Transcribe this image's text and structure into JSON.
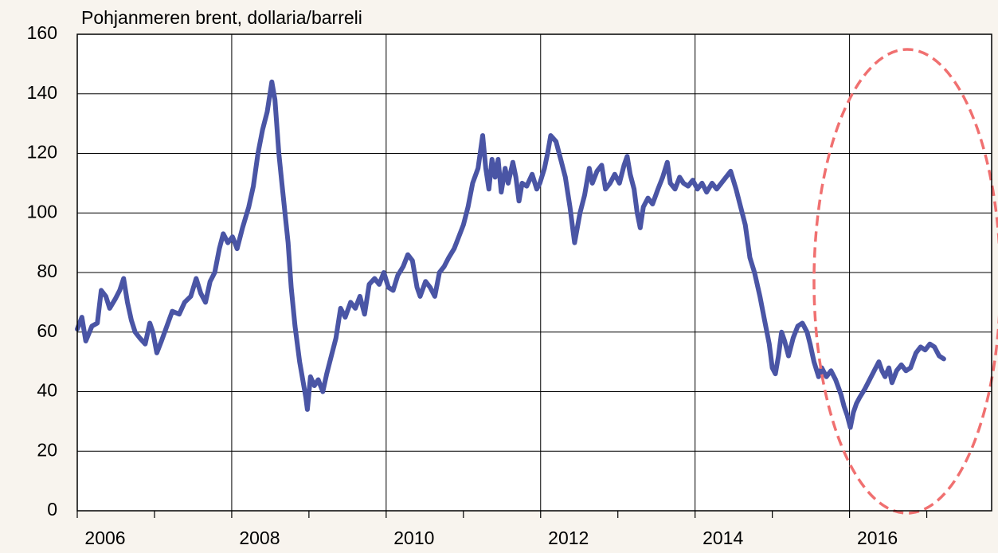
{
  "chart_data": {
    "type": "line",
    "title": "Pohjanmeren brent, dollaria/barreli",
    "color": "#4a55a5",
    "x": [
      2006.0,
      2006.06,
      2006.11,
      2006.19,
      2006.26,
      2006.31,
      2006.37,
      2006.42,
      2006.49,
      2006.55,
      2006.6,
      2006.65,
      2006.7,
      2006.75,
      2006.81,
      2006.88,
      2006.94,
      2006.98,
      2007.03,
      2007.09,
      2007.16,
      2007.23,
      2007.32,
      2007.39,
      2007.47,
      2007.54,
      2007.6,
      2007.66,
      2007.72,
      2007.78,
      2007.84,
      2007.89,
      2007.95,
      2008.01,
      2008.07,
      2008.14,
      2008.22,
      2008.28,
      2008.34,
      2008.4,
      2008.46,
      2008.52,
      2008.56,
      2008.61,
      2008.65,
      2008.69,
      2008.73,
      2008.77,
      2008.82,
      2008.88,
      2008.92,
      2008.96,
      2008.98,
      2009.02,
      2009.07,
      2009.12,
      2009.18,
      2009.23,
      2009.29,
      2009.35,
      2009.41,
      2009.47,
      2009.54,
      2009.6,
      2009.66,
      2009.72,
      2009.78,
      2009.85,
      2009.91,
      2009.97,
      2010.03,
      2010.09,
      2010.15,
      2010.22,
      2010.28,
      2010.34,
      2010.4,
      2010.44,
      2010.51,
      2010.57,
      2010.63,
      2010.69,
      2010.75,
      2010.81,
      2010.88,
      2010.94,
      2011.0,
      2011.06,
      2011.12,
      2011.19,
      2011.25,
      2011.29,
      2011.33,
      2011.37,
      2011.41,
      2011.45,
      2011.49,
      2011.54,
      2011.58,
      2011.64,
      2011.68,
      2011.72,
      2011.76,
      2011.82,
      2011.89,
      2011.95,
      2011.99,
      2012.05,
      2012.09,
      2012.13,
      2012.2,
      2012.26,
      2012.32,
      2012.38,
      2012.44,
      2012.51,
      2012.57,
      2012.63,
      2012.67,
      2012.73,
      2012.79,
      2012.84,
      2012.9,
      2012.96,
      2013.02,
      2013.08,
      2013.12,
      2013.16,
      2013.21,
      2013.25,
      2013.29,
      2013.33,
      2013.39,
      2013.45,
      2013.52,
      2013.58,
      2013.64,
      2013.68,
      2013.74,
      2013.8,
      2013.85,
      2013.91,
      2013.97,
      2014.03,
      2014.09,
      2014.15,
      2014.22,
      2014.28,
      2014.34,
      2014.4,
      2014.46,
      2014.53,
      2014.59,
      2014.65,
      2014.71,
      2014.77,
      2014.84,
      2014.9,
      2014.96,
      2015.0,
      2015.04,
      2015.08,
      2015.12,
      2015.16,
      2015.21,
      2015.27,
      2015.33,
      2015.39,
      2015.45,
      2015.49,
      2015.54,
      2015.6,
      2015.64,
      2015.7,
      2015.76,
      2015.82,
      2015.89,
      2015.93,
      2015.97,
      2016.01,
      2016.05,
      2016.09,
      2016.13,
      2016.2,
      2016.26,
      2016.32,
      2016.38,
      2016.42,
      2016.46,
      2016.51,
      2016.55,
      2016.61,
      2016.67,
      2016.73,
      2016.79,
      2016.86,
      2016.92,
      2016.98,
      2017.04,
      2017.1,
      2017.16,
      2017.22
    ],
    "values": [
      61,
      65,
      57,
      62,
      63,
      74,
      72,
      68,
      71,
      74,
      78,
      70,
      64,
      60,
      58,
      56,
      63,
      60,
      53,
      57,
      62,
      67,
      66,
      70,
      72,
      78,
      73,
      70,
      77,
      80,
      88,
      93,
      90,
      92,
      88,
      95,
      102,
      109,
      120,
      128,
      134,
      144,
      138,
      120,
      110,
      100,
      90,
      75,
      62,
      50,
      44,
      38,
      34,
      45,
      42,
      44,
      40,
      46,
      52,
      58,
      68,
      65,
      70,
      68,
      72,
      66,
      76,
      78,
      76,
      80,
      75,
      74,
      79,
      82,
      86,
      84,
      75,
      72,
      77,
      75,
      72,
      80,
      82,
      85,
      88,
      92,
      96,
      102,
      110,
      115,
      126,
      115,
      108,
      118,
      112,
      118,
      107,
      115,
      110,
      117,
      112,
      104,
      110,
      109,
      113,
      108,
      110,
      115,
      120,
      126,
      124,
      118,
      112,
      102,
      90,
      100,
      106,
      115,
      110,
      114,
      116,
      108,
      110,
      113,
      110,
      116,
      119,
      113,
      108,
      100,
      95,
      102,
      105,
      103,
      108,
      112,
      117,
      110,
      108,
      112,
      110,
      109,
      111,
      108,
      110,
      107,
      110,
      108,
      110,
      112,
      114,
      108,
      102,
      96,
      85,
      80,
      72,
      64,
      56,
      48,
      46,
      52,
      60,
      57,
      52,
      58,
      62,
      63,
      60,
      56,
      50,
      45,
      48,
      45,
      47,
      44,
      39,
      35,
      32,
      28,
      33,
      36,
      38,
      41,
      44,
      47,
      50,
      47,
      45,
      48,
      43,
      47,
      49,
      47,
      48,
      53,
      55,
      54,
      56,
      55,
      52,
      51
    ],
    "xlim": [
      2006,
      2017.84
    ],
    "xticks": [
      2006,
      2008,
      2010,
      2012,
      2014,
      2016
    ],
    "xminorticks": [
      2007,
      2009,
      2011,
      2013,
      2015,
      2017
    ],
    "ylim": [
      0,
      160
    ],
    "yticks": [
      0,
      20,
      40,
      60,
      80,
      100,
      120,
      140,
      160
    ],
    "grid": true
  }
}
